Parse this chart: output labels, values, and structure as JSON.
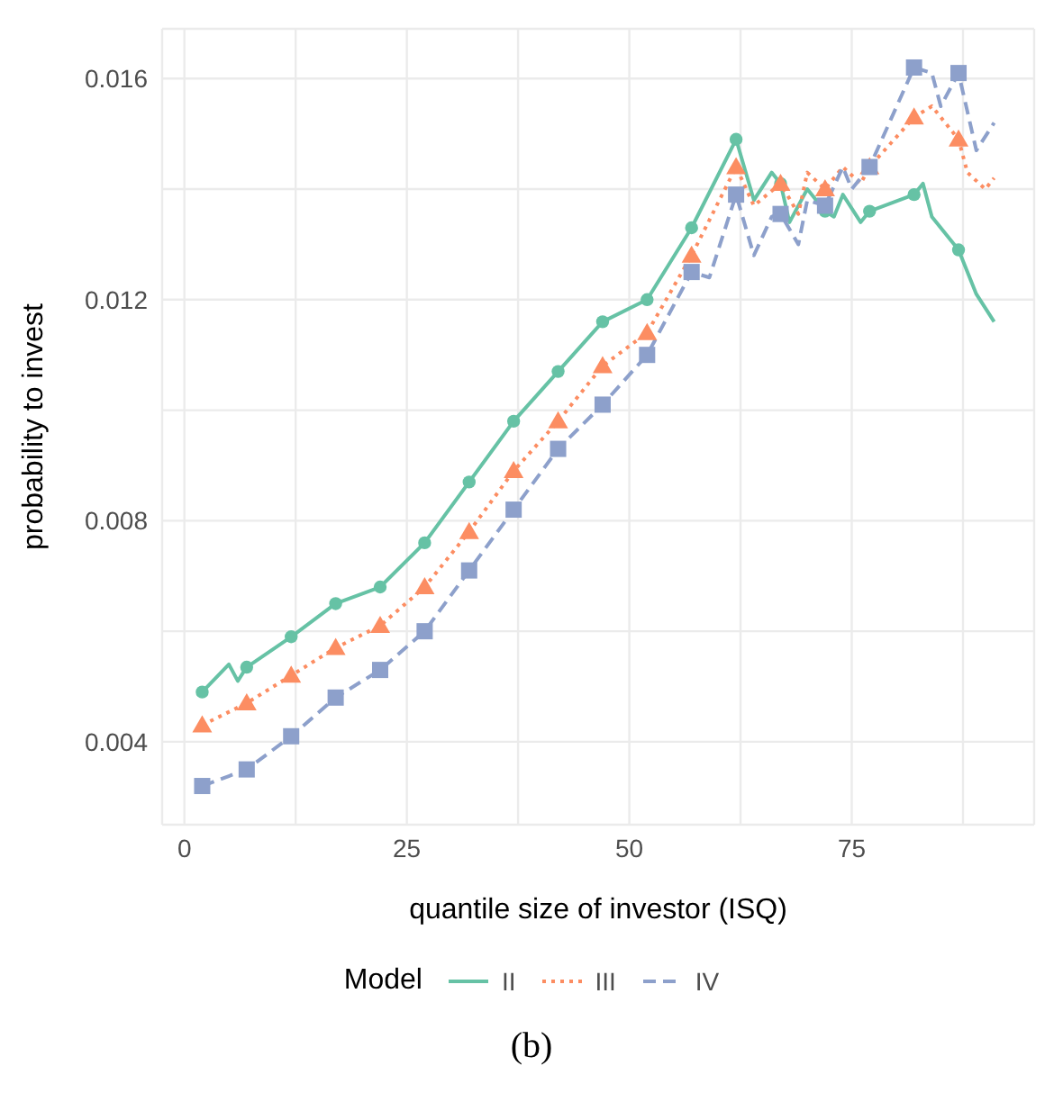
{
  "chart_data": {
    "type": "line",
    "xlabel": "quantile size of investor (ISQ)",
    "ylabel": "probability to invest",
    "legend_title": "Model",
    "legend": "bottom",
    "grid": true,
    "xlim": [
      -2.5,
      95.5
    ],
    "xticks": [
      0,
      {
        "value": 12.5,
        "label": null
      },
      25,
      {
        "value": 37.5,
        "label": null
      },
      50,
      {
        "value": 62.5,
        "label": null
      },
      75,
      {
        "value": 87.5,
        "label": null
      }
    ],
    "ylim": [
      0.0025,
      0.0169
    ],
    "yticks": [
      0.004,
      {
        "value": 0.006,
        "label": null
      },
      0.008,
      {
        "value": 0.01,
        "label": null
      },
      0.012,
      {
        "value": 0.014,
        "label": null
      },
      0.016
    ],
    "annotations": [
      "(b)"
    ],
    "series": [
      {
        "name": "II",
        "color": "#66c2a5",
        "marker": "circle",
        "line_style": "solid",
        "x": [
          2,
          5,
          6,
          7,
          12,
          17,
          22,
          27,
          32,
          37,
          42,
          47,
          52,
          57,
          62,
          64,
          66,
          67,
          68,
          70,
          72,
          73,
          74,
          76,
          77,
          82,
          83,
          84,
          87,
          89,
          91
        ],
        "values": [
          0.0049,
          0.0054,
          0.0051,
          0.00535,
          0.0059,
          0.0065,
          0.0068,
          0.0076,
          0.0087,
          0.0098,
          0.0107,
          0.0116,
          0.012,
          0.0133,
          0.0149,
          0.0138,
          0.0143,
          0.0141,
          0.0134,
          0.014,
          0.0136,
          0.0135,
          0.0139,
          0.0134,
          0.0136,
          0.0139,
          0.0141,
          0.0135,
          0.0129,
          0.0121,
          0.0116
        ]
      },
      {
        "name": "III",
        "color": "#fc8d62",
        "marker": "triangle",
        "line_style": "dotted",
        "x": [
          2,
          7,
          12,
          17,
          22,
          27,
          32,
          37,
          42,
          47,
          52,
          57,
          62,
          64,
          67,
          69,
          70,
          72,
          74,
          76,
          77,
          82,
          84,
          87,
          88,
          90,
          91
        ],
        "values": [
          0.0043,
          0.0047,
          0.0052,
          0.0057,
          0.0061,
          0.0068,
          0.0078,
          0.0089,
          0.0098,
          0.0108,
          0.0114,
          0.0128,
          0.0144,
          0.0137,
          0.0141,
          0.01355,
          0.0143,
          0.014,
          0.0144,
          0.0141,
          0.0144,
          0.0153,
          0.0155,
          0.0149,
          0.0143,
          0.014,
          0.0142
        ]
      },
      {
        "name": "IV",
        "color": "#8da0cb",
        "marker": "square",
        "line_style": "dashed",
        "x": [
          2,
          7,
          12,
          17,
          22,
          27,
          32,
          37,
          42,
          47,
          52,
          57,
          59,
          62,
          64,
          66,
          67,
          69,
          70,
          72,
          74,
          75,
          77,
          82,
          84,
          85,
          87,
          89,
          91
        ],
        "values": [
          0.0032,
          0.0035,
          0.0041,
          0.0048,
          0.0053,
          0.006,
          0.0071,
          0.0082,
          0.0093,
          0.0101,
          0.011,
          0.0125,
          0.0124,
          0.0139,
          0.0128,
          0.0135,
          0.01355,
          0.013,
          0.0138,
          0.0137,
          0.0144,
          0.014,
          0.0144,
          0.0162,
          0.0161,
          0.0155,
          0.0161,
          0.0147,
          0.0152
        ]
      }
    ]
  }
}
